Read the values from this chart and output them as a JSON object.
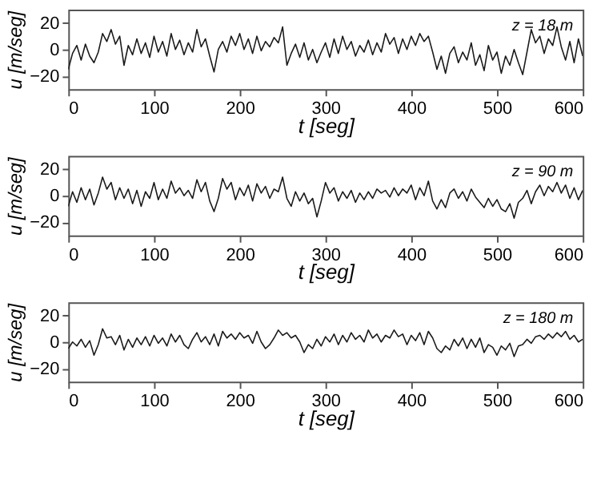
{
  "chart_data": [
    {
      "type": "line",
      "xlabel": "t [seg]",
      "ylabel": "u [m/seg]",
      "annotations": [
        "z = 18 m"
      ],
      "xlim": [
        0,
        600
      ],
      "ylim": [
        -30,
        30
      ],
      "xticks": [
        0,
        100,
        200,
        300,
        400,
        500,
        600
      ],
      "yticks": [
        -20,
        0,
        20
      ],
      "grid": false,
      "line_style": "solid",
      "x": [
        0,
        5,
        10,
        15,
        20,
        25,
        30,
        35,
        40,
        45,
        50,
        55,
        60,
        65,
        70,
        75,
        80,
        85,
        90,
        95,
        100,
        105,
        110,
        115,
        120,
        125,
        130,
        135,
        140,
        145,
        150,
        155,
        160,
        165,
        170,
        175,
        180,
        185,
        190,
        195,
        200,
        205,
        210,
        215,
        220,
        225,
        230,
        235,
        240,
        245,
        250,
        255,
        260,
        265,
        270,
        275,
        280,
        285,
        290,
        295,
        300,
        305,
        310,
        315,
        320,
        325,
        330,
        335,
        340,
        345,
        350,
        355,
        360,
        365,
        370,
        375,
        380,
        385,
        390,
        395,
        400,
        405,
        410,
        415,
        420,
        425,
        430,
        435,
        440,
        445,
        450,
        455,
        460,
        465,
        470,
        475,
        480,
        485,
        490,
        495,
        500,
        505,
        510,
        515,
        520,
        525,
        530,
        535,
        540,
        545,
        550,
        555,
        560,
        565,
        570,
        575,
        580,
        585,
        590,
        595,
        600
      ],
      "series": [
        {
          "color": "#1a1a1a",
          "values": [
            -15,
            -3,
            3,
            -8,
            4,
            -5,
            -10,
            -2,
            12,
            6,
            15,
            4,
            10,
            -12,
            3,
            -4,
            8,
            -3,
            5,
            -6,
            10,
            -2,
            6,
            -5,
            12,
            0,
            7,
            -4,
            5,
            -2,
            15,
            2,
            8,
            -5,
            -17,
            0,
            6,
            -2,
            10,
            3,
            12,
            0,
            8,
            -3,
            10,
            -1,
            6,
            2,
            9,
            5,
            17,
            -12,
            -3,
            4,
            -6,
            5,
            -8,
            0,
            -10,
            -2,
            5,
            -6,
            8,
            -3,
            10,
            0,
            6,
            -5,
            3,
            -2,
            7,
            -4,
            5,
            -2,
            12,
            4,
            9,
            -3,
            8,
            0,
            10,
            3,
            12,
            6,
            10,
            -2,
            -15,
            -5,
            -18,
            -3,
            2,
            -10,
            -2,
            -8,
            5,
            -12,
            -4,
            -16,
            3,
            -8,
            -2,
            -18,
            -5,
            -12,
            0,
            -10,
            -19,
            -2,
            15,
            5,
            10,
            -3,
            8,
            3,
            17,
            2,
            -8,
            6,
            -10,
            8,
            -5
          ]
        }
      ]
    },
    {
      "type": "line",
      "xlabel": "t [seg]",
      "ylabel": "u [m/seg]",
      "annotations": [
        "z = 90 m"
      ],
      "xlim": [
        0,
        600
      ],
      "ylim": [
        -30,
        30
      ],
      "xticks": [
        0,
        100,
        200,
        300,
        400,
        500,
        600
      ],
      "yticks": [
        -20,
        0,
        20
      ],
      "grid": false,
      "line_style": "solid",
      "x": [
        0,
        5,
        10,
        15,
        20,
        25,
        30,
        35,
        40,
        45,
        50,
        55,
        60,
        65,
        70,
        75,
        80,
        85,
        90,
        95,
        100,
        105,
        110,
        115,
        120,
        125,
        130,
        135,
        140,
        145,
        150,
        155,
        160,
        165,
        170,
        175,
        180,
        185,
        190,
        195,
        200,
        205,
        210,
        215,
        220,
        225,
        230,
        235,
        240,
        245,
        250,
        255,
        260,
        265,
        270,
        275,
        280,
        285,
        290,
        295,
        300,
        305,
        310,
        315,
        320,
        325,
        330,
        335,
        340,
        345,
        350,
        355,
        360,
        365,
        370,
        375,
        380,
        385,
        390,
        395,
        400,
        405,
        410,
        415,
        420,
        425,
        430,
        435,
        440,
        445,
        450,
        455,
        460,
        465,
        470,
        475,
        480,
        485,
        490,
        495,
        500,
        505,
        510,
        515,
        520,
        525,
        530,
        535,
        540,
        545,
        550,
        555,
        560,
        565,
        570,
        575,
        580,
        585,
        590,
        595,
        600
      ],
      "series": [
        {
          "color": "#1a1a1a",
          "values": [
            -8,
            3,
            -5,
            6,
            -3,
            5,
            -7,
            2,
            14,
            5,
            10,
            -3,
            6,
            -2,
            5,
            -6,
            4,
            -8,
            3,
            -2,
            10,
            -3,
            5,
            -2,
            11,
            2,
            6,
            0,
            4,
            -2,
            12,
            3,
            10,
            -4,
            -12,
            -2,
            13,
            5,
            10,
            -3,
            6,
            0,
            8,
            -4,
            9,
            2,
            7,
            -2,
            5,
            3,
            14,
            -2,
            -8,
            3,
            -4,
            2,
            -6,
            -2,
            -16,
            -4,
            10,
            2,
            6,
            -4,
            3,
            -2,
            4,
            -5,
            2,
            -3,
            3,
            -2,
            5,
            2,
            4,
            -1,
            6,
            0,
            5,
            2,
            8,
            -3,
            6,
            0,
            11,
            -4,
            -10,
            -3,
            -9,
            2,
            5,
            -2,
            3,
            -4,
            5,
            -1,
            -5,
            -9,
            -2,
            -8,
            -3,
            -10,
            -12,
            -6,
            -17,
            -5,
            -2,
            4,
            -6,
            3,
            8,
            0,
            7,
            3,
            10,
            2,
            8,
            -2,
            6,
            -3,
            4
          ]
        }
      ]
    },
    {
      "type": "line",
      "xlabel": "t [seg]",
      "ylabel": "u [m/seg]",
      "annotations": [
        "z = 180 m"
      ],
      "xlim": [
        0,
        600
      ],
      "ylim": [
        -30,
        30
      ],
      "xticks": [
        0,
        100,
        200,
        300,
        400,
        500,
        600
      ],
      "yticks": [
        -20,
        0,
        20
      ],
      "grid": false,
      "line_style": "solid",
      "x": [
        0,
        5,
        10,
        15,
        20,
        25,
        30,
        35,
        40,
        45,
        50,
        55,
        60,
        65,
        70,
        75,
        80,
        85,
        90,
        95,
        100,
        105,
        110,
        115,
        120,
        125,
        130,
        135,
        140,
        145,
        150,
        155,
        160,
        165,
        170,
        175,
        180,
        185,
        190,
        195,
        200,
        205,
        210,
        215,
        220,
        225,
        230,
        235,
        240,
        245,
        250,
        255,
        260,
        265,
        270,
        275,
        280,
        285,
        290,
        295,
        300,
        305,
        310,
        315,
        320,
        325,
        330,
        335,
        340,
        345,
        350,
        355,
        360,
        365,
        370,
        375,
        380,
        385,
        390,
        395,
        400,
        405,
        410,
        415,
        420,
        425,
        430,
        435,
        440,
        445,
        450,
        455,
        460,
        465,
        470,
        475,
        480,
        485,
        490,
        495,
        500,
        505,
        510,
        515,
        520,
        525,
        530,
        535,
        540,
        545,
        550,
        555,
        560,
        565,
        570,
        575,
        580,
        585,
        590,
        595,
        600
      ],
      "series": [
        {
          "color": "#1a1a1a",
          "values": [
            -5,
            0,
            -3,
            2,
            -4,
            1,
            -10,
            -2,
            10,
            3,
            4,
            -2,
            5,
            -6,
            2,
            -4,
            3,
            -2,
            4,
            -3,
            5,
            -1,
            3,
            -3,
            6,
            0,
            5,
            -2,
            -5,
            2,
            7,
            0,
            4,
            -2,
            6,
            -3,
            8,
            3,
            6,
            2,
            7,
            3,
            5,
            -1,
            8,
            0,
            -5,
            -2,
            3,
            9,
            5,
            7,
            3,
            5,
            0,
            -8,
            -2,
            -5,
            2,
            -3,
            4,
            0,
            6,
            -2,
            5,
            0,
            7,
            2,
            5,
            0,
            9,
            3,
            6,
            0,
            5,
            3,
            9,
            4,
            6,
            -2,
            5,
            1,
            7,
            -2,
            8,
            3,
            -5,
            -8,
            -3,
            -6,
            2,
            -3,
            3,
            -5,
            2,
            -4,
            3,
            -8,
            -2,
            -4,
            -10,
            -3,
            -6,
            -1,
            -11,
            -3,
            -2,
            2,
            -1,
            4,
            5,
            2,
            6,
            3,
            7,
            4,
            8,
            2,
            5,
            0,
            2
          ]
        }
      ]
    }
  ]
}
